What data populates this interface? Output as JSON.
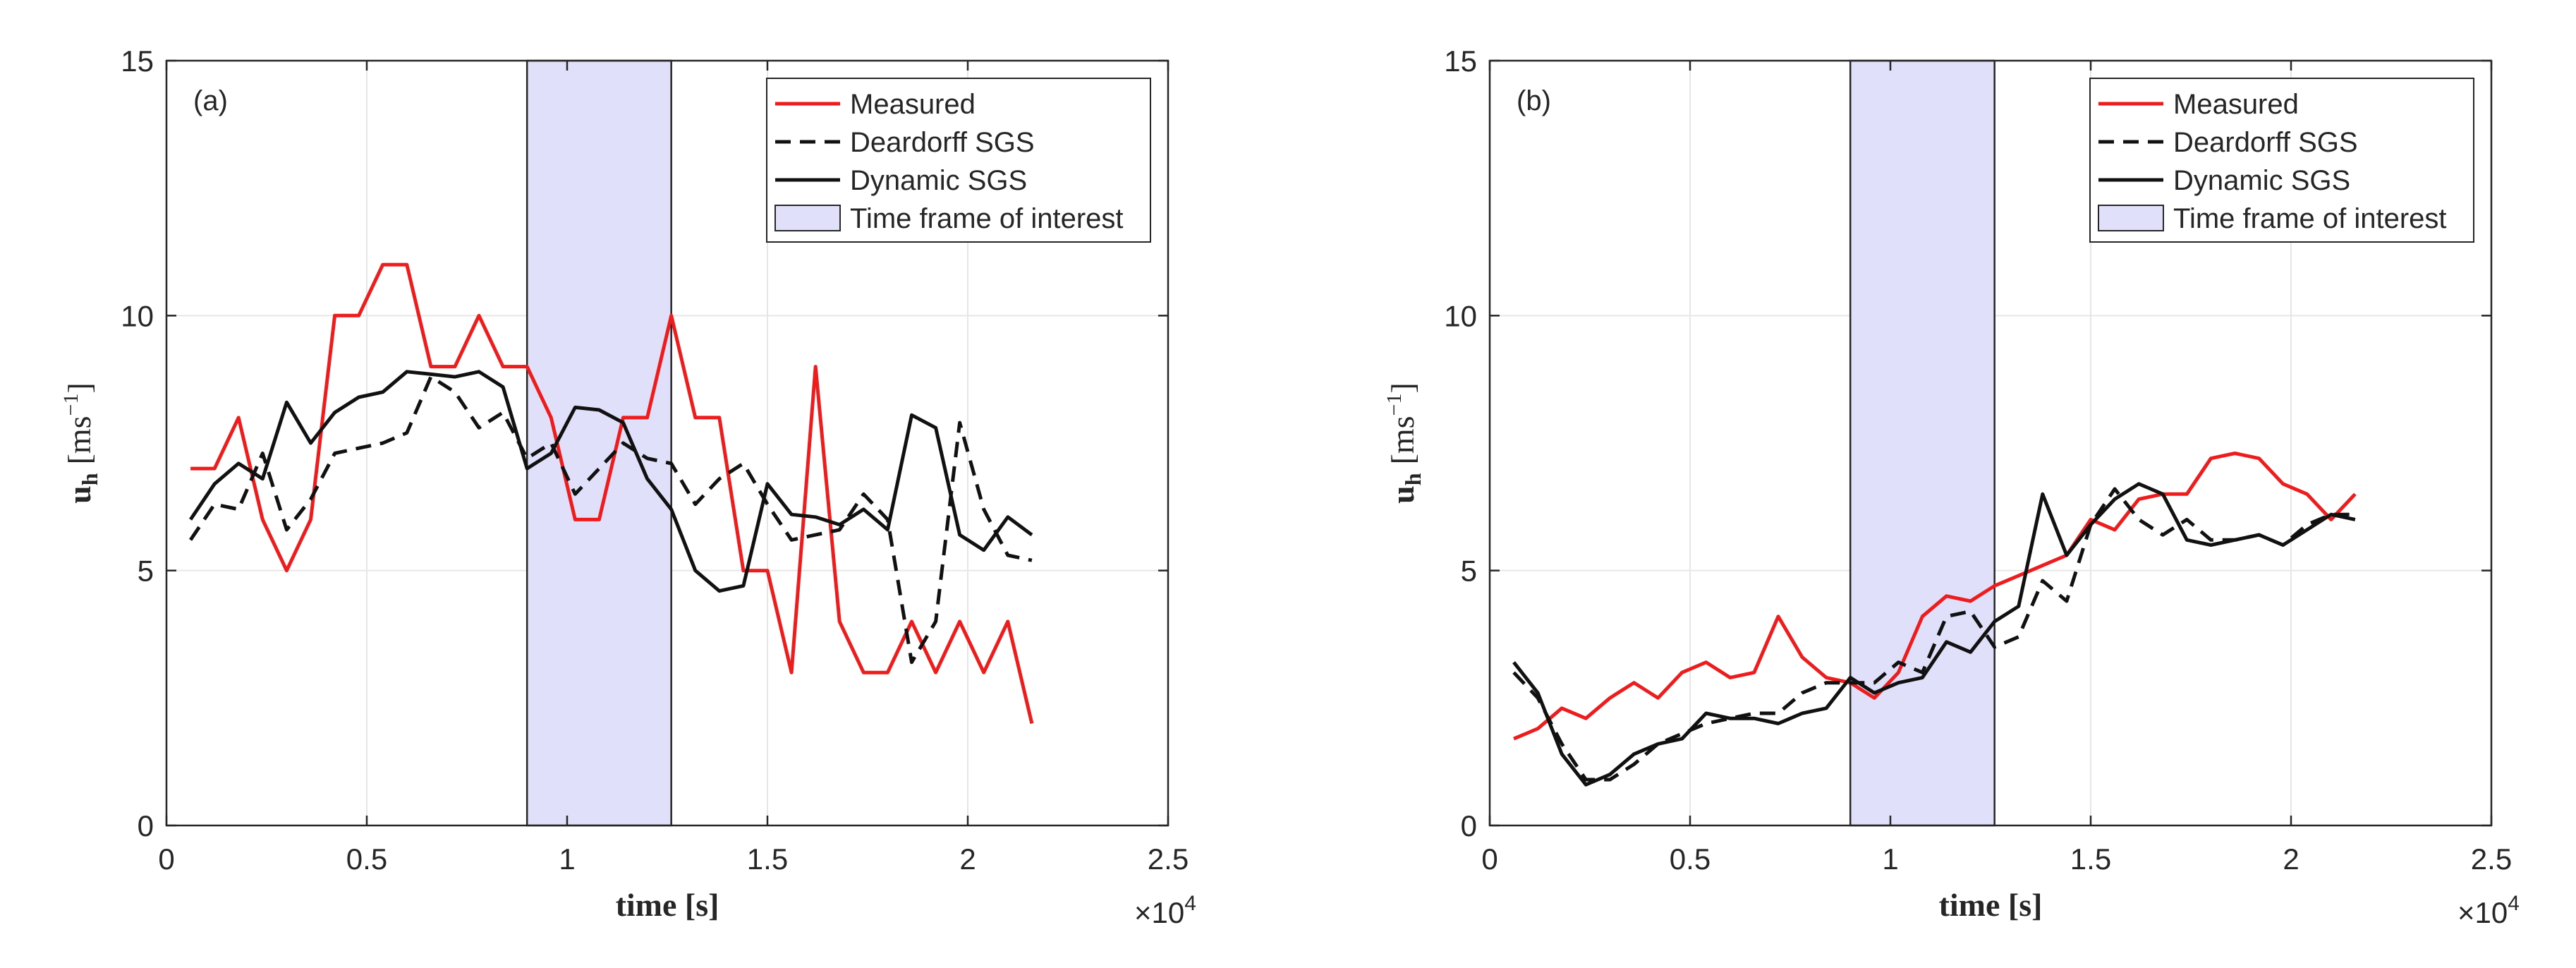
{
  "figure": {
    "background": "#ffffff"
  },
  "chart_data": [
    {
      "type": "line",
      "panel_label": "(a)",
      "xlabel": "time [s]",
      "ylabel": "u_h [ms^-1]",
      "ylabel_main": "u",
      "ylabel_sub": "h",
      "ylabel_units": "[ms",
      "ylabel_exp": "−1",
      "ylabel_close": "]",
      "x_multiplier": "×10",
      "x_multiplier_exp": "4",
      "xlim": [
        0,
        2.5
      ],
      "ylim": [
        0,
        15
      ],
      "x_ticks": [
        0,
        0.5,
        1,
        1.5,
        2,
        2.5
      ],
      "x_tick_labels": [
        "0",
        "0.5",
        "1",
        "1.5",
        "2",
        "2.5"
      ],
      "y_ticks": [
        0,
        5,
        10,
        15
      ],
      "y_tick_labels": [
        "0",
        "5",
        "10",
        "15"
      ],
      "grid": true,
      "legend_position": "top-right",
      "shaded_region": {
        "label": "Time frame of interest",
        "x_start": 0.9,
        "x_end": 1.26,
        "color": "#e0e0fb"
      },
      "legend": [
        "Measured",
        "Deardorff SGS",
        "Dynamic SGS",
        "Time frame of interest"
      ],
      "series": [
        {
          "name": "Measured",
          "color": "#ee1c1c",
          "dash": "solid",
          "x": [
            0.06,
            0.12,
            0.18,
            0.24,
            0.3,
            0.36,
            0.42,
            0.48,
            0.54,
            0.6,
            0.66,
            0.72,
            0.78,
            0.84,
            0.9,
            0.96,
            1.02,
            1.08,
            1.14,
            1.2,
            1.26,
            1.32,
            1.38,
            1.44,
            1.5,
            1.56,
            1.62,
            1.68,
            1.74,
            1.8,
            1.86,
            1.92,
            1.98,
            2.04,
            2.1,
            2.16
          ],
          "y": [
            7,
            7,
            8,
            6,
            5,
            6,
            10,
            10,
            11,
            11,
            9,
            9,
            10,
            9,
            9,
            8,
            6,
            6,
            8,
            8,
            10,
            8,
            8,
            5,
            5,
            3,
            9,
            4,
            3,
            3,
            4,
            3,
            4,
            3,
            4,
            2
          ]
        },
        {
          "name": "Deardorff SGS",
          "color": "#111111",
          "dash": "dashed",
          "x": [
            0.06,
            0.12,
            0.18,
            0.24,
            0.3,
            0.36,
            0.42,
            0.48,
            0.54,
            0.6,
            0.66,
            0.72,
            0.78,
            0.84,
            0.9,
            0.96,
            1.02,
            1.08,
            1.14,
            1.2,
            1.26,
            1.32,
            1.38,
            1.44,
            1.5,
            1.56,
            1.62,
            1.68,
            1.74,
            1.8,
            1.86,
            1.92,
            1.98,
            2.04,
            2.1,
            2.16
          ],
          "y": [
            5.6,
            6.3,
            6.2,
            7.3,
            5.8,
            6.4,
            7.3,
            7.4,
            7.5,
            7.7,
            8.8,
            8.5,
            7.8,
            8.1,
            7.2,
            7.5,
            6.5,
            7.0,
            7.5,
            7.2,
            7.1,
            6.3,
            6.8,
            7.1,
            6.3,
            5.6,
            5.7,
            5.8,
            6.5,
            6.0,
            3.2,
            4.0,
            7.9,
            6.2,
            5.3,
            5.2
          ]
        },
        {
          "name": "Dynamic SGS",
          "color": "#111111",
          "dash": "solid",
          "x": [
            0.06,
            0.12,
            0.18,
            0.24,
            0.3,
            0.36,
            0.42,
            0.48,
            0.54,
            0.6,
            0.66,
            0.72,
            0.78,
            0.84,
            0.9,
            0.96,
            1.02,
            1.08,
            1.14,
            1.2,
            1.26,
            1.32,
            1.38,
            1.44,
            1.5,
            1.56,
            1.62,
            1.68,
            1.74,
            1.8,
            1.86,
            1.92,
            1.98,
            2.04,
            2.1,
            2.16
          ],
          "y": [
            6.0,
            6.7,
            7.1,
            6.8,
            8.3,
            7.5,
            8.1,
            8.4,
            8.5,
            8.9,
            8.85,
            8.8,
            8.9,
            8.6,
            7.0,
            7.3,
            8.2,
            8.15,
            7.9,
            6.8,
            6.2,
            5.0,
            4.6,
            4.7,
            6.7,
            6.1,
            6.05,
            5.9,
            6.2,
            5.8,
            8.05,
            7.8,
            5.7,
            5.4,
            6.05,
            5.7
          ]
        }
      ]
    },
    {
      "type": "line",
      "panel_label": "(b)",
      "xlabel": "time [s]",
      "ylabel": "u_h [ms^-1]",
      "ylabel_main": "u",
      "ylabel_sub": "h",
      "ylabel_units": "[ms",
      "ylabel_exp": "−1",
      "ylabel_close": "]",
      "x_multiplier": "×10",
      "x_multiplier_exp": "4",
      "xlim": [
        0,
        2.5
      ],
      "ylim": [
        0,
        15
      ],
      "x_ticks": [
        0,
        0.5,
        1,
        1.5,
        2,
        2.5
      ],
      "x_tick_labels": [
        "0",
        "0.5",
        "1",
        "1.5",
        "2",
        "2.5"
      ],
      "y_ticks": [
        0,
        5,
        10,
        15
      ],
      "y_tick_labels": [
        "0",
        "5",
        "10",
        "15"
      ],
      "grid": true,
      "legend_position": "top-right",
      "shaded_region": {
        "label": "Time frame of interest",
        "x_start": 0.9,
        "x_end": 1.26,
        "color": "#e0e0fb"
      },
      "legend": [
        "Measured",
        "Deardorff SGS",
        "Dynamic SGS",
        "Time frame of interest"
      ],
      "series": [
        {
          "name": "Measured",
          "color": "#ee1c1c",
          "dash": "solid",
          "x": [
            0.06,
            0.12,
            0.18,
            0.24,
            0.3,
            0.36,
            0.42,
            0.48,
            0.54,
            0.6,
            0.66,
            0.72,
            0.78,
            0.84,
            0.9,
            0.96,
            1.02,
            1.08,
            1.14,
            1.2,
            1.26,
            1.32,
            1.38,
            1.44,
            1.5,
            1.56,
            1.62,
            1.68,
            1.74,
            1.8,
            1.86,
            1.92,
            1.98,
            2.04,
            2.1,
            2.16
          ],
          "y": [
            1.7,
            1.9,
            2.3,
            2.1,
            2.5,
            2.8,
            2.5,
            3.0,
            3.2,
            2.9,
            3.0,
            4.1,
            3.3,
            2.9,
            2.8,
            2.5,
            3.0,
            4.1,
            4.5,
            4.4,
            4.7,
            4.9,
            5.1,
            5.3,
            6.0,
            5.8,
            6.4,
            6.5,
            6.5,
            7.2,
            7.3,
            7.2,
            6.7,
            6.5,
            6.0,
            6.5
          ]
        },
        {
          "name": "Deardorff SGS",
          "color": "#111111",
          "dash": "dashed",
          "x": [
            0.06,
            0.12,
            0.18,
            0.24,
            0.3,
            0.36,
            0.42,
            0.48,
            0.54,
            0.6,
            0.66,
            0.72,
            0.78,
            0.84,
            0.9,
            0.96,
            1.02,
            1.08,
            1.14,
            1.2,
            1.26,
            1.32,
            1.38,
            1.44,
            1.5,
            1.56,
            1.62,
            1.68,
            1.74,
            1.8,
            1.86,
            1.92,
            1.98,
            2.04,
            2.1,
            2.16
          ],
          "y": [
            3.0,
            2.5,
            1.6,
            0.9,
            0.9,
            1.2,
            1.6,
            1.8,
            2.0,
            2.1,
            2.2,
            2.2,
            2.6,
            2.8,
            2.8,
            2.8,
            3.2,
            3.0,
            4.1,
            4.2,
            3.5,
            3.7,
            4.8,
            4.4,
            5.9,
            6.6,
            6.0,
            5.7,
            6.0,
            5.6,
            5.6,
            5.7,
            5.5,
            5.9,
            6.1,
            6.1
          ]
        },
        {
          "name": "Dynamic SGS",
          "color": "#111111",
          "dash": "solid",
          "x": [
            0.06,
            0.12,
            0.18,
            0.24,
            0.3,
            0.36,
            0.42,
            0.48,
            0.54,
            0.6,
            0.66,
            0.72,
            0.78,
            0.84,
            0.9,
            0.96,
            1.02,
            1.08,
            1.14,
            1.2,
            1.26,
            1.32,
            1.38,
            1.44,
            1.5,
            1.56,
            1.62,
            1.68,
            1.74,
            1.8,
            1.86,
            1.92,
            1.98,
            2.04,
            2.1,
            2.16
          ],
          "y": [
            3.2,
            2.6,
            1.4,
            0.8,
            1.0,
            1.4,
            1.6,
            1.7,
            2.2,
            2.1,
            2.1,
            2.0,
            2.2,
            2.3,
            2.9,
            2.6,
            2.8,
            2.9,
            3.6,
            3.4,
            4.0,
            4.3,
            6.5,
            5.3,
            5.9,
            6.4,
            6.7,
            6.5,
            5.6,
            5.5,
            5.6,
            5.7,
            5.5,
            5.8,
            6.1,
            6.0
          ]
        }
      ]
    }
  ]
}
